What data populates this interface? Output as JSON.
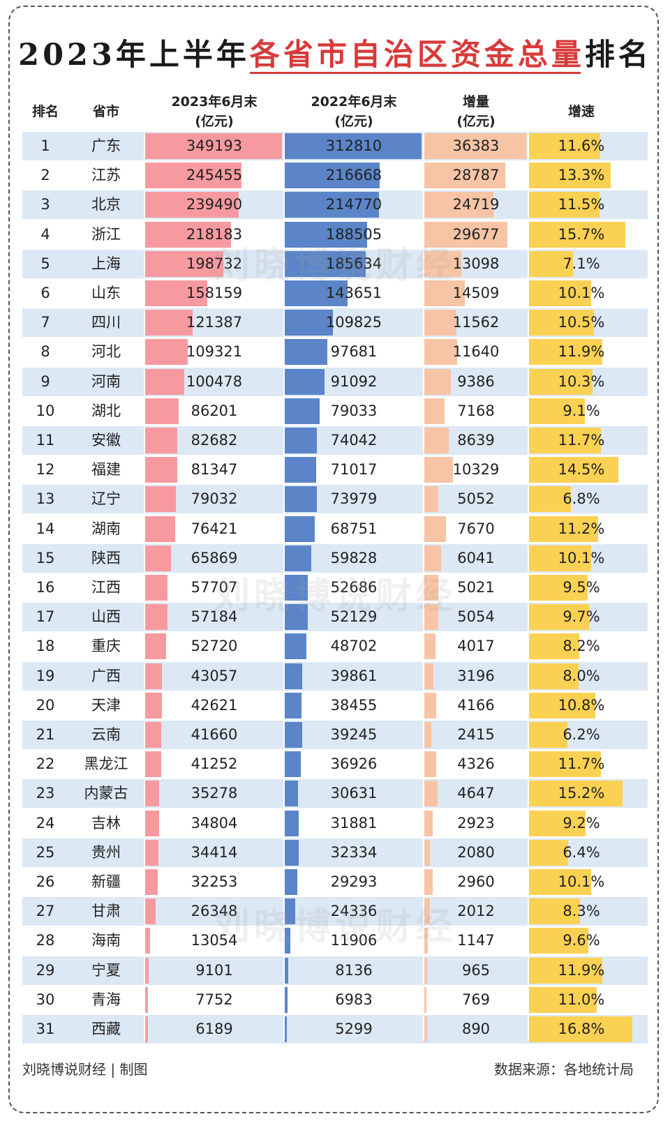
{
  "title": {
    "part1": "2023年上半年",
    "highlight": "各省市自治区资金总量",
    "part2": "排名"
  },
  "headers": {
    "rank": "排名",
    "province": "省市",
    "col2023": [
      "2023年6月末",
      "(亿元)"
    ],
    "col2022": [
      "2022年6月末",
      "(亿元)"
    ],
    "increase": [
      "增量",
      "(亿元)"
    ],
    "growth": "增速"
  },
  "watermark": "刘晓博说财经",
  "footer": {
    "left": "刘晓博说财经 | 制图",
    "right": "数据来源：各地统计局"
  },
  "colors": {
    "bar2023": "#f79aa0",
    "bar2022": "#5b85c8",
    "barIncrease": "#f7c4a5",
    "barGrowth": "#fbd153",
    "stripe": "#dce8f4",
    "titleAccent": "#d83a3a"
  },
  "chart_data": {
    "type": "table",
    "title": "2023年上半年各省市自治区资金总量排名",
    "columns": [
      "排名",
      "省市",
      "2023年6月末(亿元)",
      "2022年6月末(亿元)",
      "增量(亿元)",
      "增速"
    ],
    "rows": [
      {
        "rank": "1",
        "province": "广东",
        "v2023": 349193,
        "v2022": 312810,
        "inc": 36383,
        "growth": 11.6
      },
      {
        "rank": "2",
        "province": "江苏",
        "v2023": 245455,
        "v2022": 216668,
        "inc": 28787,
        "growth": 13.3
      },
      {
        "rank": "3",
        "province": "北京",
        "v2023": 239490,
        "v2022": 214770,
        "inc": 24719,
        "growth": 11.5
      },
      {
        "rank": "4",
        "province": "浙江",
        "v2023": 218183,
        "v2022": 188505,
        "inc": 29677,
        "growth": 15.7
      },
      {
        "rank": "5",
        "province": "上海",
        "v2023": 198732,
        "v2022": 185634,
        "inc": 13098,
        "growth": 7.1
      },
      {
        "rank": "6",
        "province": "山东",
        "v2023": 158159,
        "v2022": 143651,
        "inc": 14509,
        "growth": 10.1
      },
      {
        "rank": "7",
        "province": "四川",
        "v2023": 121387,
        "v2022": 109825,
        "inc": 11562,
        "growth": 10.5
      },
      {
        "rank": "8",
        "province": "河北",
        "v2023": 109321,
        "v2022": 97681,
        "inc": 11640,
        "growth": 11.9
      },
      {
        "rank": "9",
        "province": "河南",
        "v2023": 100478,
        "v2022": 91092,
        "inc": 9386,
        "growth": 10.3
      },
      {
        "rank": "10",
        "province": "湖北",
        "v2023": 86201,
        "v2022": 79033,
        "inc": 7168,
        "growth": 9.1
      },
      {
        "rank": "11",
        "province": "安徽",
        "v2023": 82682,
        "v2022": 74042,
        "inc": 8639,
        "growth": 11.7
      },
      {
        "rank": "12",
        "province": "福建",
        "v2023": 81347,
        "v2022": 71017,
        "inc": 10329,
        "growth": 14.5
      },
      {
        "rank": "13",
        "province": "辽宁",
        "v2023": 79032,
        "v2022": 73979,
        "inc": 5052,
        "growth": 6.8
      },
      {
        "rank": "14",
        "province": "湖南",
        "v2023": 76421,
        "v2022": 68751,
        "inc": 7670,
        "growth": 11.2
      },
      {
        "rank": "15",
        "province": "陕西",
        "v2023": 65869,
        "v2022": 59828,
        "inc": 6041,
        "growth": 10.1
      },
      {
        "rank": "16",
        "province": "江西",
        "v2023": 57707,
        "v2022": 52686,
        "inc": 5021,
        "growth": 9.5
      },
      {
        "rank": "17",
        "province": "山西",
        "v2023": 57184,
        "v2022": 52129,
        "inc": 5054,
        "growth": 9.7
      },
      {
        "rank": "18",
        "province": "重庆",
        "v2023": 52720,
        "v2022": 48702,
        "inc": 4017,
        "growth": 8.2
      },
      {
        "rank": "19",
        "province": "广西",
        "v2023": 43057,
        "v2022": 39861,
        "inc": 3196,
        "growth": 8.0
      },
      {
        "rank": "20",
        "province": "天津",
        "v2023": 42621,
        "v2022": 38455,
        "inc": 4166,
        "growth": 10.8
      },
      {
        "rank": "21",
        "province": "云南",
        "v2023": 41660,
        "v2022": 39245,
        "inc": 2415,
        "growth": 6.2
      },
      {
        "rank": "22",
        "province": "黑龙江",
        "v2023": 41252,
        "v2022": 36926,
        "inc": 4326,
        "growth": 11.7
      },
      {
        "rank": "23",
        "province": "内蒙古",
        "v2023": 35278,
        "v2022": 30631,
        "inc": 4647,
        "growth": 15.2
      },
      {
        "rank": "24",
        "province": "吉林",
        "v2023": 34804,
        "v2022": 31881,
        "inc": 2923,
        "growth": 9.2
      },
      {
        "rank": "25",
        "province": "贵州",
        "v2023": 34414,
        "v2022": 32334,
        "inc": 2080,
        "growth": 6.4
      },
      {
        "rank": "26",
        "province": "新疆",
        "v2023": 32253,
        "v2022": 29293,
        "inc": 2960,
        "growth": 10.1
      },
      {
        "rank": "27",
        "province": "甘肃",
        "v2023": 26348,
        "v2022": 24336,
        "inc": 2012,
        "growth": 8.3
      },
      {
        "rank": "28",
        "province": "海南",
        "v2023": 13054,
        "v2022": 11906,
        "inc": 1147,
        "growth": 9.6
      },
      {
        "rank": "29",
        "province": "宁夏",
        "v2023": 9101,
        "v2022": 8136,
        "inc": 965,
        "growth": 11.9
      },
      {
        "rank": "30",
        "province": "青海",
        "v2023": 7752,
        "v2022": 6983,
        "inc": 769,
        "growth": 11.0
      },
      {
        "rank": "31",
        "province": "西藏",
        "v2023": 6189,
        "v2022": 5299,
        "inc": 890,
        "growth": 16.8
      }
    ]
  }
}
